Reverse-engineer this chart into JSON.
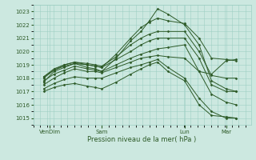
{
  "title": "",
  "xlabel": "Pression niveau de la mer( hPa )",
  "bg_color": "#cce8e0",
  "grid_color": "#9ecfc4",
  "line_color": "#2d5a27",
  "tick_color": "#2d5a27",
  "label_color": "#2d5a27",
  "ylim": [
    1014.5,
    1023.5
  ],
  "yticks": [
    1015,
    1016,
    1017,
    1018,
    1019,
    1020,
    1021,
    1022,
    1023
  ],
  "xlim": [
    0.0,
    1.05
  ],
  "x_ticks": [
    0.08,
    0.33,
    0.73,
    0.93
  ],
  "x_labels": [
    "VenDim",
    "Sam",
    "Lun",
    "Mar"
  ],
  "lines": [
    {
      "x": [
        0.05,
        0.1,
        0.15,
        0.2,
        0.26,
        0.3,
        0.33,
        0.4,
        0.47,
        0.52,
        0.56,
        0.6,
        0.65,
        0.73,
        0.8,
        0.86,
        0.93,
        0.98
      ],
      "y": [
        1017.7,
        1018.5,
        1018.8,
        1019.1,
        1018.8,
        1018.7,
        1018.5,
        1019.5,
        1020.8,
        1021.5,
        1022.3,
        1023.2,
        1022.8,
        1022.0,
        1020.5,
        1017.8,
        1017.2,
        1017.0
      ]
    },
    {
      "x": [
        0.05,
        0.1,
        0.15,
        0.2,
        0.26,
        0.3,
        0.33,
        0.4,
        0.47,
        0.52,
        0.56,
        0.6,
        0.65,
        0.73,
        0.8,
        0.86,
        0.93,
        0.98
      ],
      "y": [
        1018.0,
        1018.6,
        1019.0,
        1019.2,
        1019.0,
        1018.9,
        1018.8,
        1019.8,
        1021.0,
        1021.8,
        1022.2,
        1022.5,
        1022.3,
        1022.1,
        1021.0,
        1019.5,
        1019.4,
        1019.3
      ]
    },
    {
      "x": [
        0.05,
        0.1,
        0.15,
        0.2,
        0.26,
        0.3,
        0.33,
        0.4,
        0.47,
        0.52,
        0.56,
        0.6,
        0.65,
        0.73,
        0.8,
        0.86,
        0.93,
        0.98
      ],
      "y": [
        1018.1,
        1018.7,
        1019.0,
        1019.2,
        1019.1,
        1019.0,
        1018.9,
        1019.6,
        1020.5,
        1021.0,
        1021.3,
        1021.5,
        1021.5,
        1021.5,
        1020.0,
        1018.2,
        1018.0,
        1018.0
      ]
    },
    {
      "x": [
        0.05,
        0.1,
        0.15,
        0.2,
        0.26,
        0.3,
        0.33,
        0.4,
        0.47,
        0.52,
        0.56,
        0.6,
        0.65,
        0.73,
        0.8,
        0.86,
        0.93,
        0.98
      ],
      "y": [
        1018.1,
        1018.6,
        1018.9,
        1019.1,
        1019.0,
        1018.9,
        1018.8,
        1019.4,
        1020.0,
        1020.5,
        1020.8,
        1021.0,
        1021.0,
        1021.0,
        1019.5,
        1017.5,
        1017.0,
        1017.0
      ]
    },
    {
      "x": [
        0.05,
        0.1,
        0.15,
        0.2,
        0.26,
        0.3,
        0.33,
        0.4,
        0.47,
        0.52,
        0.56,
        0.6,
        0.65,
        0.73,
        0.8,
        0.86,
        0.93,
        0.98
      ],
      "y": [
        1017.8,
        1018.3,
        1018.6,
        1018.9,
        1018.7,
        1018.6,
        1018.5,
        1019.0,
        1019.5,
        1019.8,
        1020.0,
        1020.2,
        1020.3,
        1020.5,
        1018.5,
        1016.8,
        1016.2,
        1016.0
      ]
    },
    {
      "x": [
        0.05,
        0.1,
        0.15,
        0.2,
        0.26,
        0.3,
        0.33,
        0.4,
        0.47,
        0.52,
        0.56,
        0.6,
        0.65,
        0.73,
        0.8,
        0.86,
        0.93,
        0.98
      ],
      "y": [
        1017.5,
        1018.0,
        1018.4,
        1018.7,
        1018.5,
        1018.5,
        1018.4,
        1018.8,
        1019.2,
        1019.5,
        1019.6,
        1019.7,
        1019.6,
        1019.5,
        1018.5,
        1018.3,
        1019.3,
        1019.4
      ]
    },
    {
      "x": [
        0.05,
        0.1,
        0.15,
        0.2,
        0.26,
        0.3,
        0.33,
        0.4,
        0.47,
        0.52,
        0.56,
        0.6,
        0.65,
        0.73,
        0.8,
        0.86,
        0.93,
        0.98
      ],
      "y": [
        1017.2,
        1017.6,
        1017.9,
        1018.1,
        1018.0,
        1018.0,
        1018.0,
        1018.4,
        1018.8,
        1019.0,
        1019.2,
        1019.4,
        1018.8,
        1018.0,
        1016.5,
        1015.5,
        1015.0,
        1015.0
      ]
    },
    {
      "x": [
        0.05,
        0.1,
        0.15,
        0.2,
        0.26,
        0.3,
        0.33,
        0.4,
        0.47,
        0.52,
        0.56,
        0.6,
        0.65,
        0.73,
        0.8,
        0.86,
        0.93,
        0.98
      ],
      "y": [
        1017.0,
        1017.3,
        1017.5,
        1017.6,
        1017.4,
        1017.3,
        1017.2,
        1017.7,
        1018.3,
        1018.7,
        1019.0,
        1019.2,
        1018.5,
        1017.8,
        1016.0,
        1015.2,
        1015.1,
        1015.0
      ]
    }
  ],
  "marker": "D",
  "markersize": 1.5,
  "linewidth": 0.7
}
